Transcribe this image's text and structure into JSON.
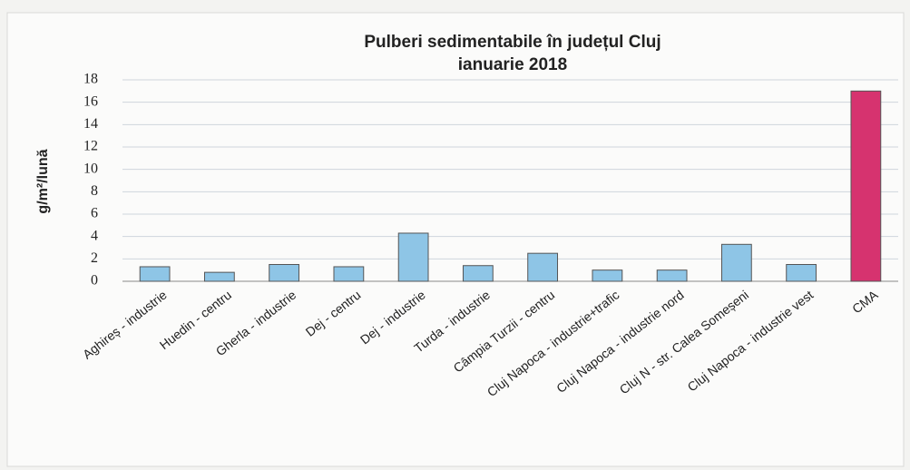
{
  "chart_data": {
    "type": "bar",
    "title": "Pulberi sedimentabile în județul Cluj",
    "subtitle": "ianuarie 2018",
    "y_label": "g/m²/lună",
    "categories": [
      "Aghireș - industrie",
      "Huedin - centru",
      "Gherla - industrie",
      "Dej - centru",
      "Dej - industrie",
      "Turda - industrie",
      "Câmpia Turzii - centru",
      "Cluj Napoca - industrie+trafic",
      "Cluj Napoca - industrie nord",
      "Cluj N - str. Calea Someșeni",
      "Cluj Napoca - industrie vest",
      "CMA"
    ],
    "values": [
      1.3,
      0.8,
      1.5,
      1.3,
      4.3,
      1.4,
      2.5,
      1.0,
      1.0,
      3.3,
      1.5,
      17
    ],
    "colors": [
      "#8ec5e6",
      "#8ec5e6",
      "#8ec5e6",
      "#8ec5e6",
      "#8ec5e6",
      "#8ec5e6",
      "#8ec5e6",
      "#8ec5e6",
      "#8ec5e6",
      "#8ec5e6",
      "#8ec5e6",
      "#d6336f"
    ],
    "ylim": [
      0,
      18
    ],
    "yticks": [
      0,
      2,
      4,
      6,
      8,
      10,
      12,
      14,
      16,
      18
    ],
    "grid": true
  }
}
